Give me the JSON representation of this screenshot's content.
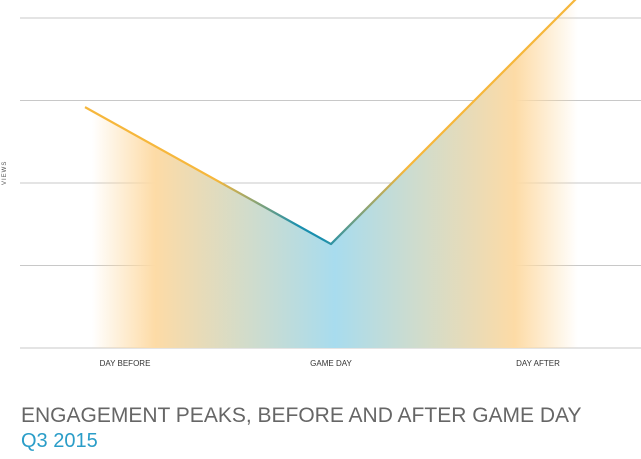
{
  "chart_data": {
    "type": "area",
    "title": "ENGAGEMENT PEAKS, BEFORE AND AFTER GAME DAY",
    "subtitle": "Q3 2015",
    "xlabel": "",
    "ylabel": "VIEWS",
    "categories": [
      "DAY BEFORE",
      "GAME DAY",
      "DAY AFTER"
    ],
    "series": [
      {
        "values": [
          2.65,
          1.26,
          3.77
        ]
      }
    ],
    "ylim": [
      0,
      4
    ],
    "grid": true,
    "legend": "none",
    "colors": {
      "line_orange": "#f6b73c",
      "line_teal": "#1a8fae",
      "fill_orange": "#fddba6",
      "fill_blue": "#a8dcee",
      "grid": "#c8c8c8"
    }
  }
}
